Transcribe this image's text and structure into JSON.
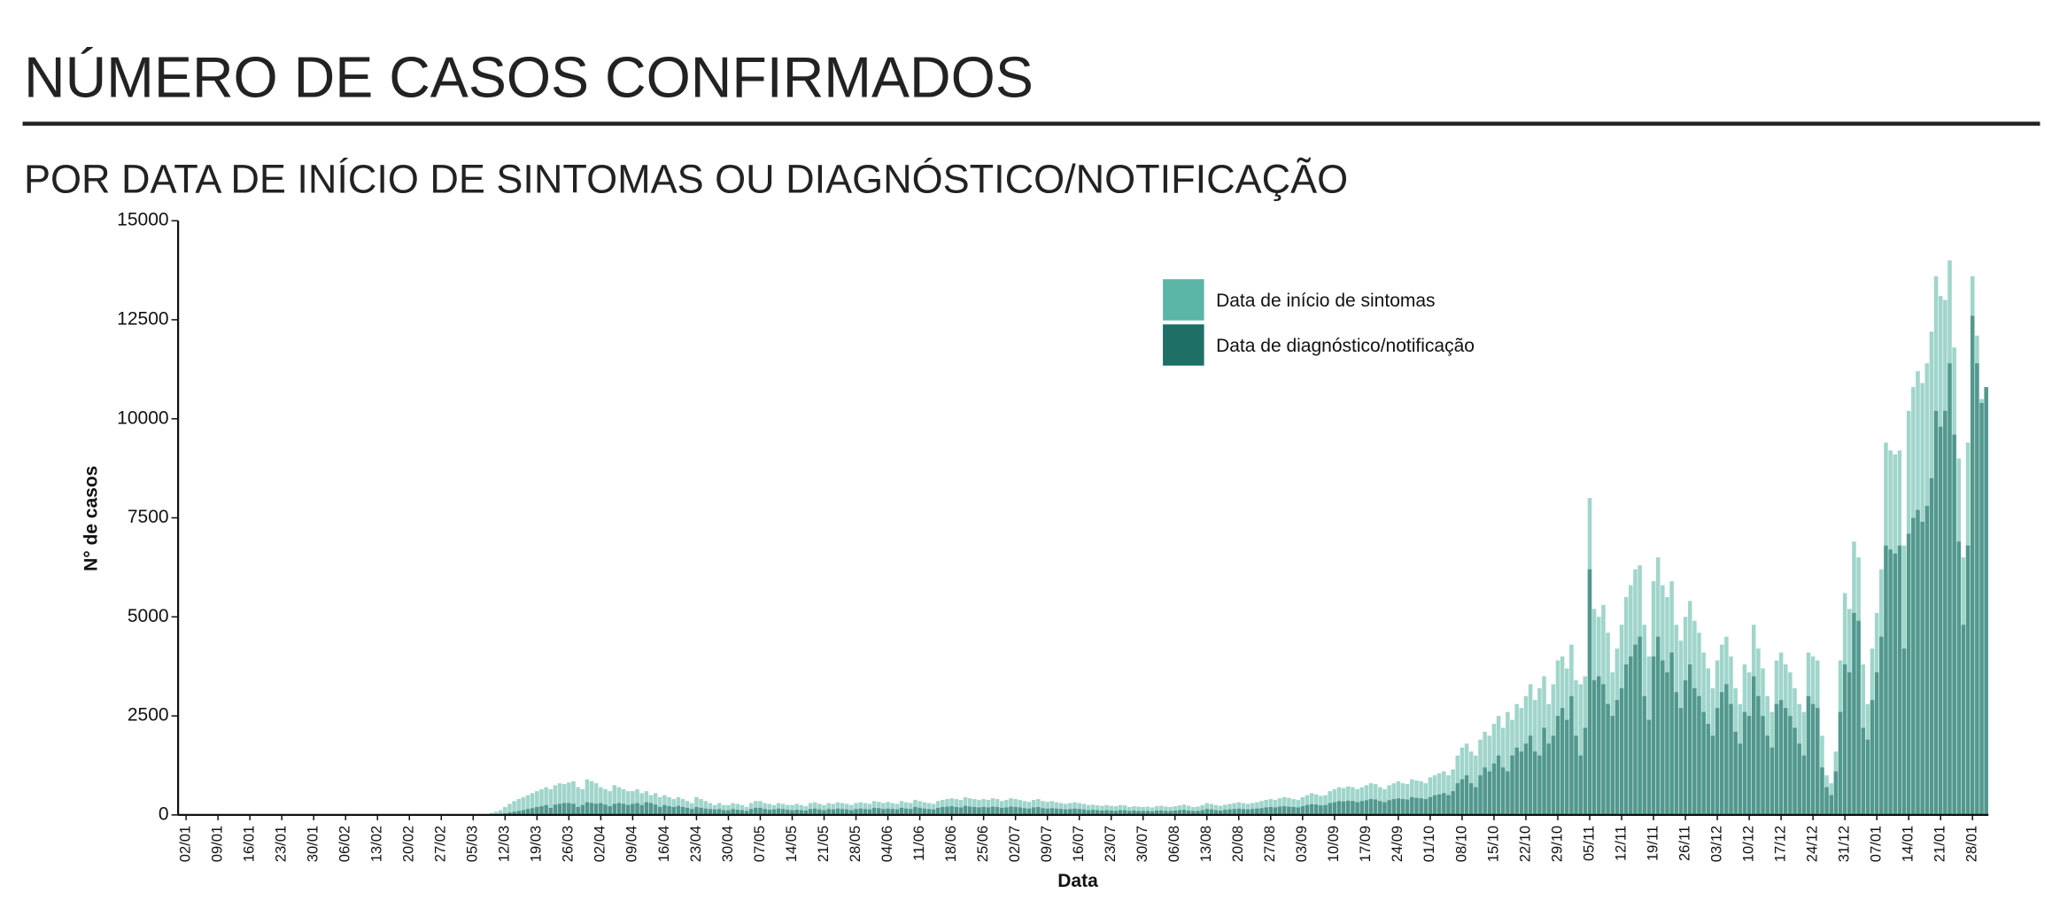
{
  "chart_data": {
    "type": "bar",
    "title": "NÚMERO DE CASOS CONFIRMADOS",
    "subtitle": "POR DATA DE INÍCIO DE SINTOMAS OU DIAGNÓSTICO/NOTIFICAÇÃO",
    "x_label": "Data",
    "y_label": "N° de casos",
    "ylim": [
      0,
      15000
    ],
    "yticks": [
      0,
      2500,
      5000,
      7500,
      10000,
      12500,
      15000
    ],
    "categories": [
      "02/01",
      null,
      null,
      null,
      null,
      null,
      null,
      "09/01",
      null,
      null,
      null,
      null,
      null,
      null,
      "16/01",
      null,
      null,
      null,
      null,
      null,
      null,
      "23/01",
      null,
      null,
      null,
      null,
      null,
      null,
      "30/01",
      null,
      null,
      null,
      null,
      null,
      null,
      "06/02",
      null,
      null,
      null,
      null,
      null,
      null,
      "13/02",
      null,
      null,
      null,
      null,
      null,
      null,
      "20/02",
      null,
      null,
      null,
      null,
      null,
      null,
      "27/02",
      null,
      null,
      null,
      null,
      null,
      null,
      "05/03",
      null,
      null,
      null,
      null,
      null,
      null,
      "12/03",
      null,
      null,
      null,
      null,
      null,
      null,
      "19/03",
      null,
      null,
      null,
      null,
      null,
      null,
      "26/03",
      null,
      null,
      null,
      null,
      null,
      null,
      "02/04",
      null,
      null,
      null,
      null,
      null,
      null,
      "09/04",
      null,
      null,
      null,
      null,
      null,
      null,
      "16/04",
      null,
      null,
      null,
      null,
      null,
      null,
      "23/04",
      null,
      null,
      null,
      null,
      null,
      null,
      "30/04",
      null,
      null,
      null,
      null,
      null,
      null,
      "07/05",
      null,
      null,
      null,
      null,
      null,
      null,
      "14/05",
      null,
      null,
      null,
      null,
      null,
      null,
      "21/05",
      null,
      null,
      null,
      null,
      null,
      null,
      "28/05",
      null,
      null,
      null,
      null,
      null,
      null,
      "04/06",
      null,
      null,
      null,
      null,
      null,
      null,
      "11/06",
      null,
      null,
      null,
      null,
      null,
      null,
      "18/06",
      null,
      null,
      null,
      null,
      null,
      null,
      "25/06",
      null,
      null,
      null,
      null,
      null,
      null,
      "02/07",
      null,
      null,
      null,
      null,
      null,
      null,
      "09/07",
      null,
      null,
      null,
      null,
      null,
      null,
      "16/07",
      null,
      null,
      null,
      null,
      null,
      null,
      "23/07",
      null,
      null,
      null,
      null,
      null,
      null,
      "30/07",
      null,
      null,
      null,
      null,
      null,
      null,
      "06/08",
      null,
      null,
      null,
      null,
      null,
      null,
      "13/08",
      null,
      null,
      null,
      null,
      null,
      null,
      "20/08",
      null,
      null,
      null,
      null,
      null,
      null,
      "27/08",
      null,
      null,
      null,
      null,
      null,
      null,
      "03/09",
      null,
      null,
      null,
      null,
      null,
      null,
      "10/09",
      null,
      null,
      null,
      null,
      null,
      null,
      "17/09",
      null,
      null,
      null,
      null,
      null,
      null,
      "24/09",
      null,
      null,
      null,
      null,
      null,
      null,
      "01/10",
      null,
      null,
      null,
      null,
      null,
      null,
      "08/10",
      null,
      null,
      null,
      null,
      null,
      null,
      "15/10",
      null,
      null,
      null,
      null,
      null,
      null,
      "22/10",
      null,
      null,
      null,
      null,
      null,
      null,
      "29/10",
      null,
      null,
      null,
      null,
      null,
      null,
      "05/11",
      null,
      null,
      null,
      null,
      null,
      null,
      "12/11",
      null,
      null,
      null,
      null,
      null,
      null,
      "19/11",
      null,
      null,
      null,
      null,
      null,
      null,
      "26/11",
      null,
      null,
      null,
      null,
      null,
      null,
      "03/12",
      null,
      null,
      null,
      null,
      null,
      null,
      "10/12",
      null,
      null,
      null,
      null,
      null,
      null,
      "17/12",
      null,
      null,
      null,
      null,
      null,
      null,
      "24/12",
      null,
      null,
      null,
      null,
      null,
      null,
      "31/12",
      null,
      null,
      null,
      null,
      null,
      null,
      "07/01",
      null,
      null,
      null,
      null,
      null,
      null,
      "14/01",
      null,
      null,
      null,
      null,
      null,
      null,
      "21/01",
      null,
      null,
      null,
      null,
      null,
      null,
      "28/01",
      null,
      null,
      null
    ],
    "series": [
      {
        "name": "Data de início de sintomas",
        "color": "#52b2a0",
        "values": [
          0,
          0,
          0,
          0,
          0,
          0,
          0,
          0,
          0,
          0,
          0,
          0,
          0,
          0,
          0,
          0,
          0,
          0,
          0,
          0,
          0,
          0,
          0,
          0,
          0,
          0,
          0,
          0,
          0,
          0,
          0,
          0,
          0,
          0,
          0,
          0,
          0,
          0,
          0,
          0,
          0,
          0,
          0,
          0,
          0,
          0,
          0,
          0,
          0,
          0,
          0,
          0,
          0,
          0,
          0,
          0,
          0,
          0,
          0,
          0,
          0,
          0,
          0,
          0,
          0,
          0,
          0,
          50,
          80,
          120,
          200,
          280,
          350,
          400,
          450,
          500,
          550,
          600,
          650,
          700,
          650,
          750,
          800,
          780,
          820,
          850,
          700,
          650,
          900,
          850,
          800,
          700,
          650,
          600,
          750,
          700,
          650,
          600,
          600,
          650,
          550,
          600,
          500,
          550,
          450,
          500,
          450,
          400,
          450,
          400,
          350,
          300,
          450,
          400,
          350,
          300,
          250,
          300,
          250,
          250,
          300,
          280,
          250,
          200,
          300,
          350,
          350,
          300,
          280,
          250,
          300,
          280,
          250,
          250,
          280,
          250,
          220,
          300,
          320,
          280,
          250,
          300,
          280,
          320,
          300,
          280,
          250,
          300,
          320,
          300,
          280,
          350,
          330,
          300,
          330,
          300,
          280,
          350,
          320,
          300,
          380,
          350,
          320,
          300,
          280,
          350,
          380,
          400,
          420,
          400,
          380,
          450,
          420,
          400,
          380,
          400,
          380,
          420,
          400,
          350,
          380,
          420,
          400,
          380,
          350,
          330,
          380,
          400,
          350,
          330,
          350,
          320,
          300,
          280,
          300,
          320,
          300,
          280,
          250,
          260,
          240,
          230,
          250,
          230,
          220,
          250,
          240,
          200,
          220,
          210,
          200,
          210,
          190,
          220,
          230,
          210,
          200,
          220,
          240,
          260,
          230,
          200,
          210,
          250,
          300,
          280,
          250,
          230,
          260,
          280,
          300,
          320,
          300,
          280,
          300,
          320,
          350,
          380,
          400,
          380,
          420,
          450,
          430,
          400,
          380,
          450,
          500,
          550,
          520,
          480,
          500,
          600,
          650,
          700,
          680,
          720,
          700,
          650,
          700,
          750,
          800,
          780,
          700,
          650,
          750,
          800,
          850,
          800,
          780,
          900,
          870,
          850,
          800,
          950,
          1000,
          1050,
          1100,
          1000,
          1150,
          1500,
          1700,
          1800,
          1600,
          1500,
          1900,
          2100,
          2000,
          2300,
          2500,
          2200,
          2600,
          2400,
          2800,
          2700,
          3000,
          3300,
          2900,
          3200,
          3500,
          2800,
          3300,
          3900,
          4000,
          3700,
          4300,
          3400,
          3300,
          3500,
          8000,
          5200,
          5000,
          5300,
          4600,
          3600,
          4200,
          4800,
          5500,
          5800,
          6200,
          6300,
          4800,
          4000,
          5900,
          6500,
          5800,
          5500,
          5900,
          4800,
          4400,
          5000,
          5400,
          4900,
          4600,
          4100,
          3700,
          3200,
          3900,
          4300,
          4500,
          4000,
          3200,
          2800,
          3800,
          3600,
          4800,
          4200,
          3700,
          3000,
          2600,
          3900,
          4100,
          3800,
          3600,
          3200,
          2800,
          2600,
          4100,
          4000,
          3900,
          2000,
          1000,
          800,
          1600,
          3900,
          5600,
          5200,
          6900,
          6500,
          3800,
          2800,
          4200,
          5100,
          6200,
          9400,
          9200,
          9100,
          9200,
          6800,
          10200,
          10800,
          11200,
          10900,
          11400,
          12200,
          13600,
          13100,
          13000,
          14000,
          11800,
          9000,
          6500,
          9400,
          13600,
          12100,
          10500,
          10800
        ]
      },
      {
        "name": "Data de diagnóstico/notificação",
        "color": "#1e6f66",
        "values": [
          0,
          0,
          0,
          0,
          0,
          0,
          0,
          0,
          0,
          0,
          0,
          0,
          0,
          0,
          0,
          0,
          0,
          0,
          0,
          0,
          0,
          0,
          0,
          0,
          0,
          0,
          0,
          0,
          0,
          0,
          0,
          0,
          0,
          0,
          0,
          0,
          0,
          0,
          0,
          0,
          0,
          0,
          0,
          0,
          0,
          0,
          0,
          0,
          0,
          0,
          0,
          0,
          0,
          0,
          0,
          0,
          0,
          0,
          0,
          0,
          0,
          0,
          0,
          0,
          0,
          0,
          0,
          10,
          20,
          30,
          40,
          60,
          80,
          100,
          120,
          150,
          170,
          200,
          220,
          250,
          180,
          260,
          280,
          300,
          300,
          280,
          200,
          250,
          320,
          300,
          280,
          300,
          260,
          220,
          280,
          300,
          280,
          250,
          280,
          300,
          250,
          320,
          300,
          260,
          200,
          250,
          220,
          200,
          230,
          200,
          180,
          150,
          200,
          180,
          160,
          150,
          140,
          150,
          120,
          120,
          150,
          130,
          120,
          100,
          150,
          180,
          180,
          150,
          130,
          140,
          160,
          150,
          130,
          120,
          130,
          120,
          110,
          150,
          160,
          140,
          120,
          150,
          140,
          160,
          150,
          140,
          120,
          150,
          160,
          150,
          140,
          180,
          170,
          150,
          160,
          150,
          140,
          180,
          160,
          150,
          200,
          180,
          160,
          150,
          140,
          180,
          200,
          210,
          220,
          200,
          190,
          230,
          210,
          200,
          190,
          200,
          190,
          210,
          200,
          180,
          190,
          210,
          200,
          190,
          170,
          160,
          190,
          200,
          170,
          160,
          170,
          160,
          150,
          140,
          150,
          160,
          150,
          140,
          120,
          130,
          120,
          110,
          120,
          110,
          100,
          120,
          120,
          100,
          110,
          100,
          100,
          100,
          90,
          110,
          110,
          100,
          100,
          110,
          120,
          130,
          110,
          100,
          100,
          120,
          150,
          140,
          120,
          110,
          130,
          140,
          150,
          160,
          150,
          140,
          150,
          160,
          170,
          190,
          200,
          190,
          210,
          220,
          210,
          200,
          190,
          220,
          250,
          270,
          260,
          240,
          250,
          300,
          320,
          350,
          340,
          360,
          350,
          320,
          350,
          370,
          400,
          390,
          350,
          320,
          370,
          400,
          420,
          400,
          390,
          450,
          430,
          420,
          400,
          450,
          500,
          520,
          550,
          500,
          600,
          800,
          900,
          1000,
          800,
          700,
          1000,
          1200,
          1100,
          1300,
          1500,
          1200,
          1100,
          1500,
          1700,
          1600,
          1800,
          2000,
          1600,
          1500,
          2200,
          1800,
          2000,
          2500,
          2700,
          2400,
          3000,
          2000,
          1500,
          2200,
          6200,
          3400,
          3500,
          3300,
          2800,
          2500,
          2900,
          3200,
          3800,
          4000,
          4300,
          4500,
          3000,
          2400,
          4000,
          4500,
          3900,
          3600,
          4100,
          3100,
          2700,
          3400,
          3800,
          3200,
          3000,
          2600,
          2300,
          2000,
          2700,
          3100,
          3300,
          2800,
          2100,
          1800,
          2600,
          2500,
          3500,
          3000,
          2500,
          2000,
          1700,
          2800,
          2900,
          2700,
          2500,
          2200,
          1800,
          1500,
          3000,
          2800,
          2700,
          1200,
          700,
          500,
          1100,
          2600,
          3800,
          3600,
          5100,
          4900,
          2200,
          1900,
          2900,
          3600,
          4500,
          6800,
          6700,
          6600,
          6800,
          4200,
          7100,
          7500,
          7700,
          7400,
          7800,
          8500,
          10200,
          9800,
          10200,
          11400,
          9600,
          6900,
          4800,
          6800,
          12600,
          11400,
          10400,
          10800
        ]
      }
    ]
  }
}
